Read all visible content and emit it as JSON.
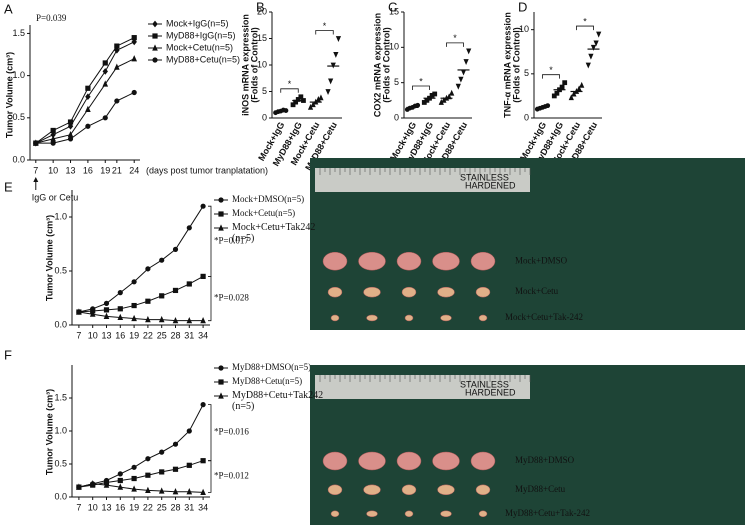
{
  "chart_data": [
    {
      "type": "line",
      "panel": "A",
      "ylabel": "Tumor Volume (cm³)",
      "xlabel": "(days post tumor tranplatation)",
      "annotation": "P=0.039",
      "arrow_label": "IgG or Cetu",
      "x": [
        7,
        10,
        13,
        16,
        19,
        21,
        24
      ],
      "xlim": [
        6,
        25
      ],
      "xticks": [
        7,
        10,
        13,
        16,
        19,
        21,
        24
      ],
      "ylim": [
        0,
        1.6
      ],
      "yticks": [
        {
          "value": 0,
          "label": "0.0"
        },
        {
          "value": 0.5,
          "label": "0.5"
        },
        {
          "value": 1,
          "label": "1.0"
        },
        {
          "value": 1.5,
          "label": "1.5"
        }
      ],
      "series": [
        {
          "name": "Mock+IgG(n=5)",
          "color": "#111111",
          "marker": "diamond",
          "values": [
            0.2,
            0.3,
            0.4,
            0.75,
            1.05,
            1.3,
            1.4
          ]
        },
        {
          "name": "MyD88+IgG(n=5)",
          "color": "#111111",
          "marker": "square",
          "values": [
            0.2,
            0.35,
            0.45,
            0.85,
            1.15,
            1.35,
            1.45
          ]
        },
        {
          "name": "Mock+Cetu(n=5)",
          "color": "#111111",
          "marker": "triangle",
          "values": [
            0.2,
            0.25,
            0.3,
            0.6,
            0.9,
            1.1,
            1.2
          ]
        },
        {
          "name": "MyD88+Cetu(n=5)",
          "color": "#111111",
          "marker": "circle",
          "values": [
            0.2,
            0.2,
            0.25,
            0.4,
            0.5,
            0.7,
            0.8
          ]
        }
      ]
    },
    {
      "type": "dot",
      "panel": "B",
      "ylabel": [
        "iNOS mRNA expression",
        "(Folds of Control)"
      ],
      "categories": [
        "Mock+IgG",
        "MyD88+IgG",
        "Mock+Cetu",
        "MyD88+Cetu"
      ],
      "markers": [
        "circle",
        "square",
        "triangle",
        "triangle-down"
      ],
      "values": [
        1.3,
        3.3,
        3.0,
        9.8
      ],
      "points": [
        [
          1.0,
          1.2,
          1.3,
          1.5,
          1.4
        ],
        [
          2.5,
          3.0,
          3.5,
          4.0,
          3.3
        ],
        [
          2.0,
          2.5,
          3.0,
          3.5,
          3.8
        ],
        [
          5,
          7,
          10,
          12,
          15
        ]
      ],
      "significance": [
        "*",
        "*"
      ],
      "ylim": [
        0,
        20
      ],
      "yticks": [
        0,
        5,
        10,
        15,
        20
      ]
    },
    {
      "type": "dot",
      "panel": "C",
      "ylabel": [
        "COX2 mRNA expression",
        "(Folds of Control)"
      ],
      "categories": [
        "Mock+IgG",
        "MyD88+IgG",
        "Mock+Cetu",
        "MyD88+Cetu"
      ],
      "markers": [
        "circle",
        "square",
        "triangle",
        "triangle-down"
      ],
      "values": [
        1.5,
        2.8,
        2.8,
        6.8
      ],
      "points": [
        [
          1.2,
          1.4,
          1.5,
          1.7,
          1.8
        ],
        [
          2.2,
          2.5,
          2.8,
          3.2,
          3.4
        ],
        [
          2.2,
          2.5,
          2.8,
          3.0,
          3.5
        ],
        [
          4.5,
          5.5,
          6.5,
          8.0,
          9.5
        ]
      ],
      "significance": [
        "*",
        "*"
      ],
      "ylim": [
        0,
        15
      ],
      "yticks": [
        0,
        5,
        10,
        15
      ]
    },
    {
      "type": "dot",
      "panel": "D",
      "ylabel": [
        "TNF-α mRNA expression",
        "(Folds of Control)"
      ],
      "categories": [
        "Mock+IgG",
        "MyD88+IgG",
        "Mock+Cetu",
        "MyD88+Cetu"
      ],
      "markers": [
        "circle",
        "square",
        "triangle",
        "triangle-down"
      ],
      "values": [
        1.2,
        3.2,
        3.0,
        7.8
      ],
      "points": [
        [
          1.0,
          1.1,
          1.2,
          1.3,
          1.4
        ],
        [
          2.5,
          2.8,
          3.2,
          3.5,
          4.0
        ],
        [
          2.3,
          2.7,
          3.0,
          3.3,
          3.7
        ],
        [
          6.0,
          7.0,
          8.0,
          8.5,
          9.5
        ]
      ],
      "significance": [
        "*",
        "*"
      ],
      "ylim": [
        0,
        12
      ],
      "yticks": [
        0,
        5,
        10
      ]
    },
    {
      "type": "line",
      "panel": "E",
      "ylabel": "Tumor Volume (cm³)",
      "x": [
        7,
        10,
        13,
        16,
        19,
        22,
        25,
        28,
        31,
        34
      ],
      "xlim": [
        5.5,
        35.5
      ],
      "xticks": [
        7,
        10,
        13,
        16,
        19,
        22,
        25,
        28,
        31,
        34
      ],
      "ylim": [
        0,
        1.25
      ],
      "yticks": [
        {
          "value": 0,
          "label": "0.0"
        },
        {
          "value": 0.5,
          "label": "0.5"
        },
        {
          "value": 1,
          "label": "1.0"
        }
      ],
      "series": [
        {
          "name": "Mock+DMSO(n=5)",
          "color": "#111111",
          "marker": "circle",
          "values": [
            0.12,
            0.15,
            0.2,
            0.3,
            0.4,
            0.52,
            0.6,
            0.7,
            0.9,
            1.1
          ]
        },
        {
          "name": "Mock+Cetu(n=5)",
          "color": "#111111",
          "marker": "square",
          "values": [
            0.12,
            0.13,
            0.14,
            0.15,
            0.18,
            0.22,
            0.27,
            0.32,
            0.38,
            0.45
          ]
        },
        {
          "name": "Mock+Cetu+Tak242 (n=5)",
          "color": "#111111",
          "marker": "triangle",
          "values": [
            0.12,
            0.1,
            0.08,
            0.07,
            0.06,
            0.05,
            0.05,
            0.04,
            0.04,
            0.04
          ]
        }
      ],
      "p_values": [
        "*P=0.017",
        "*P=0.028"
      ],
      "photo": {
        "ruler_text": [
          "STAINLESS",
          "HARDENED"
        ],
        "labels": [
          "Mock+DMSO",
          "Mock+Cetu",
          "Mock+Cetu+Tak-242"
        ]
      }
    },
    {
      "type": "line",
      "panel": "F",
      "ylabel": "Tumor Volume (cm³)",
      "x": [
        7,
        10,
        13,
        16,
        19,
        22,
        25,
        28,
        31,
        34
      ],
      "xlim": [
        5.5,
        35.5
      ],
      "xticks": [
        7,
        10,
        13,
        16,
        19,
        22,
        25,
        28,
        31,
        34
      ],
      "ylim": [
        0,
        2
      ],
      "yticks": [
        {
          "value": 0,
          "label": "0.0"
        },
        {
          "value": 0.5,
          "label": "0.5"
        },
        {
          "value": 1,
          "label": "1.0"
        },
        {
          "value": 1.5,
          "label": "1.5"
        }
      ],
      "series": [
        {
          "name": "MyD88+DMSO(n=5)",
          "color": "#111111",
          "marker": "circle",
          "values": [
            0.15,
            0.2,
            0.25,
            0.35,
            0.45,
            0.58,
            0.68,
            0.8,
            1.0,
            1.4
          ]
        },
        {
          "name": "MyD88+Cetu(n=5)",
          "color": "#111111",
          "marker": "square",
          "values": [
            0.15,
            0.18,
            0.22,
            0.25,
            0.28,
            0.33,
            0.38,
            0.42,
            0.48,
            0.55
          ]
        },
        {
          "name": "MyD88+Cetu+Tak242 (n=5)",
          "color": "#111111",
          "marker": "triangle",
          "values": [
            0.15,
            0.2,
            0.18,
            0.15,
            0.12,
            0.1,
            0.09,
            0.08,
            0.08,
            0.07
          ]
        }
      ],
      "p_values": [
        "*P=0.016",
        "*P=0.012"
      ],
      "photo": {
        "ruler_text": [
          "STAINLESS",
          "HARDENED"
        ],
        "labels": [
          "MyD88+DMSO",
          "MyD88+Cetu",
          "MyD88+Cetu+Tak-242"
        ]
      }
    }
  ]
}
